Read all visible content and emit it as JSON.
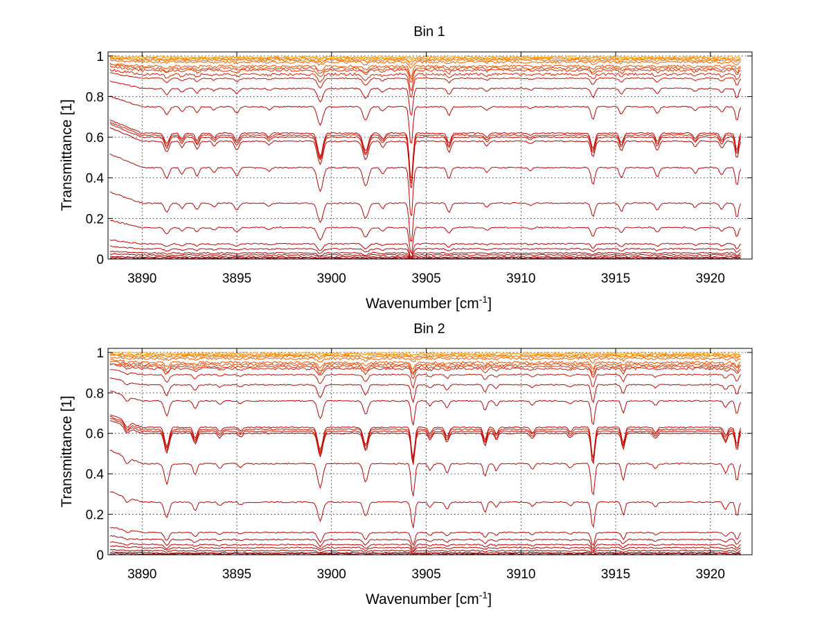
{
  "chart_data": [
    {
      "type": "line",
      "title": "Bin 1",
      "xlabel": "Wavenumber [cm",
      "xlabel_superscript": "-1",
      "xlabel_suffix": "]",
      "ylabel": "Transmittance [1]",
      "xlim": [
        3888.2,
        3922.2
      ],
      "ylim": [
        0,
        1.02
      ],
      "xticks": [
        "3890",
        "3895",
        "3900",
        "3905",
        "3910",
        "3915",
        "3920"
      ],
      "yticks": [
        "0",
        "0.2",
        "0.4",
        "0.6",
        "0.8",
        "1"
      ],
      "grid": true,
      "x_range": [
        3888.3,
        3921.6
      ],
      "series_baselines": [
        0.0,
        0.005,
        0.01,
        0.02,
        0.03,
        0.05,
        0.075,
        0.155,
        0.275,
        0.45,
        0.58,
        0.6,
        0.61,
        0.62,
        0.75,
        0.84,
        0.89,
        0.91,
        0.93,
        0.94,
        0.95,
        0.97,
        0.98,
        0.985,
        0.99,
        0.995
      ],
      "absorption_lines": [
        {
          "x": 3891.3,
          "depth": 0.6,
          "width": 0.12
        },
        {
          "x": 3892.1,
          "depth": 0.35,
          "width": 0.1
        },
        {
          "x": 3892.9,
          "depth": 0.45,
          "width": 0.1
        },
        {
          "x": 3893.8,
          "depth": 0.25,
          "width": 0.1
        },
        {
          "x": 3895.0,
          "depth": 0.45,
          "width": 0.12
        },
        {
          "x": 3896.7,
          "depth": 0.2,
          "width": 0.1
        },
        {
          "x": 3899.4,
          "depth": 1.3,
          "width": 0.14
        },
        {
          "x": 3901.8,
          "depth": 1.0,
          "width": 0.14
        },
        {
          "x": 3902.7,
          "depth": 0.35,
          "width": 0.1
        },
        {
          "x": 3904.2,
          "depth": 2.8,
          "width": 0.09
        },
        {
          "x": 3906.2,
          "depth": 0.6,
          "width": 0.1
        },
        {
          "x": 3908.2,
          "depth": 0.25,
          "width": 0.1
        },
        {
          "x": 3910.5,
          "depth": 0.15,
          "width": 0.1
        },
        {
          "x": 3913.8,
          "depth": 0.9,
          "width": 0.1
        },
        {
          "x": 3915.3,
          "depth": 0.55,
          "width": 0.1
        },
        {
          "x": 3917.2,
          "depth": 0.5,
          "width": 0.1
        },
        {
          "x": 3919.2,
          "depth": 0.3,
          "width": 0.1
        },
        {
          "x": 3920.6,
          "depth": 0.4,
          "width": 0.1
        },
        {
          "x": 3921.4,
          "depth": 1.0,
          "width": 0.08
        }
      ],
      "colors": [
        "#7f0000",
        "#8a0000",
        "#990000",
        "#a80000",
        "#b50000",
        "#bf0000",
        "#c00000",
        "#c00000",
        "#c00000",
        "#c00000",
        "#b80000",
        "#c81000",
        "#d01a00",
        "#c00000",
        "#c00000",
        "#c00000",
        "#cc1100",
        "#d82000",
        "#e23000",
        "#e84000",
        "#ee5000",
        "#f06000",
        "#f47000",
        "#f88000",
        "#fa9000",
        "#fca000"
      ]
    },
    {
      "type": "line",
      "title": "Bin 2",
      "xlabel": "Wavenumber [cm",
      "xlabel_superscript": "-1",
      "xlabel_suffix": "]",
      "ylabel": "Transmittance [1]",
      "xlim": [
        3888.2,
        3922.2
      ],
      "ylim": [
        0,
        1.02
      ],
      "xticks": [
        "3890",
        "3895",
        "3900",
        "3905",
        "3910",
        "3915",
        "3920"
      ],
      "yticks": [
        "0",
        "0.2",
        "0.4",
        "0.6",
        "0.8",
        "1"
      ],
      "grid": true,
      "x_range": [
        3888.3,
        3921.6
      ],
      "series_baselines": [
        0.0,
        0.005,
        0.01,
        0.02,
        0.035,
        0.05,
        0.075,
        0.11,
        0.26,
        0.45,
        0.6,
        0.61,
        0.62,
        0.63,
        0.76,
        0.84,
        0.89,
        0.92,
        0.93,
        0.94,
        0.95,
        0.97,
        0.98,
        0.985,
        0.99,
        0.995
      ],
      "absorption_lines": [
        {
          "x": 3889.2,
          "depth": 0.35,
          "width": 0.12
        },
        {
          "x": 3891.3,
          "depth": 1.1,
          "width": 0.12
        },
        {
          "x": 3892.8,
          "depth": 0.6,
          "width": 0.1
        },
        {
          "x": 3894.1,
          "depth": 0.25,
          "width": 0.1
        },
        {
          "x": 3895.2,
          "depth": 0.2,
          "width": 0.1
        },
        {
          "x": 3899.4,
          "depth": 1.3,
          "width": 0.13
        },
        {
          "x": 3901.8,
          "depth": 1.0,
          "width": 0.12
        },
        {
          "x": 3904.3,
          "depth": 1.8,
          "width": 0.09
        },
        {
          "x": 3905.2,
          "depth": 0.35,
          "width": 0.1
        },
        {
          "x": 3906.1,
          "depth": 0.5,
          "width": 0.1
        },
        {
          "x": 3908.1,
          "depth": 0.7,
          "width": 0.09
        },
        {
          "x": 3908.7,
          "depth": 0.4,
          "width": 0.08
        },
        {
          "x": 3910.6,
          "depth": 0.3,
          "width": 0.1
        },
        {
          "x": 3912.6,
          "depth": 0.25,
          "width": 0.1
        },
        {
          "x": 3913.8,
          "depth": 1.8,
          "width": 0.09
        },
        {
          "x": 3915.4,
          "depth": 0.9,
          "width": 0.09
        },
        {
          "x": 3917.1,
          "depth": 0.3,
          "width": 0.1
        },
        {
          "x": 3920.8,
          "depth": 0.5,
          "width": 0.1
        },
        {
          "x": 3921.4,
          "depth": 1.0,
          "width": 0.08
        }
      ],
      "colors": [
        "#7f0000",
        "#8a0000",
        "#990000",
        "#a80000",
        "#b50000",
        "#bf0000",
        "#c00000",
        "#c00000",
        "#c00000",
        "#c00000",
        "#b80000",
        "#c81000",
        "#d01a00",
        "#c00000",
        "#c00000",
        "#c00000",
        "#cc1100",
        "#d82000",
        "#e23000",
        "#e84000",
        "#ee5000",
        "#f06000",
        "#f47000",
        "#f88000",
        "#fa9000",
        "#fca000"
      ]
    }
  ],
  "colors": {
    "grid": "#000000",
    "axes": "#000000",
    "background": "#ffffff"
  }
}
